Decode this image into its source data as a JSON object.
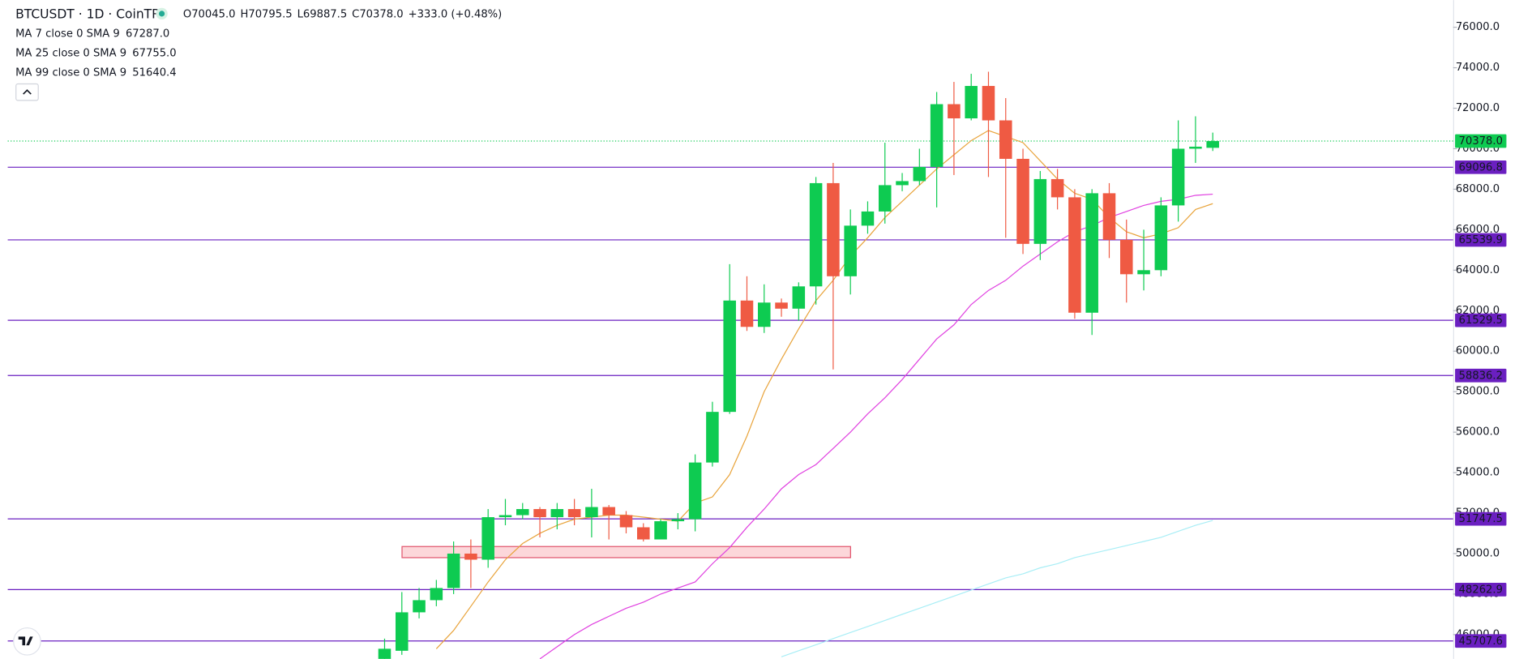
{
  "chart_data": {
    "type": "candlestick",
    "symbol": "BTCUSDT · 1D · CoinTR",
    "ohlc_labels": [
      "O70045.0",
      "H70795.5",
      "L69887.5",
      "C70378.0"
    ],
    "change_label": "+333.0 (+0.48%)",
    "up_color": "#0ecb51",
    "down_color": "#ef5a43",
    "open": [
      44800,
      45200,
      47100,
      47700,
      48300,
      50000,
      49700,
      51800,
      51900,
      52200,
      51800,
      52200,
      51800,
      52300,
      51900,
      51300,
      50700,
      51600,
      51700,
      54500,
      57000,
      62500,
      61200,
      62400,
      62100,
      63200,
      68300,
      63700,
      66200,
      66900,
      68200,
      68400,
      69100,
      72200,
      71500,
      73100,
      71400,
      69500,
      65300,
      68500,
      67600,
      61900,
      67800,
      65500,
      63800,
      64000,
      67200,
      70000,
      70045
    ],
    "high": [
      45800,
      48100,
      48300,
      48700,
      50600,
      50700,
      52200,
      52700,
      52500,
      52300,
      52500,
      52700,
      53200,
      52400,
      52100,
      51500,
      51700,
      52000,
      54900,
      57500,
      64300,
      63700,
      63300,
      62600,
      63400,
      68600,
      69300,
      67000,
      67400,
      70300,
      68800,
      70000,
      72800,
      73300,
      73700,
      73800,
      72500,
      70000,
      68900,
      69000,
      68000,
      68000,
      68300,
      66500,
      66000,
      67600,
      71400,
      71600,
      70795.5
    ],
    "low": [
      44800,
      45000,
      46800,
      47400,
      48000,
      48300,
      49300,
      51400,
      51700,
      50800,
      51200,
      51400,
      50800,
      50700,
      51000,
      50600,
      50700,
      51200,
      51100,
      54300,
      56900,
      61000,
      60900,
      61700,
      61500,
      62300,
      59100,
      62800,
      65800,
      66300,
      67900,
      68200,
      67100,
      68700,
      71400,
      68600,
      65600,
      64800,
      64500,
      67000,
      61600,
      60800,
      64600,
      62400,
      63000,
      63700,
      66400,
      69300,
      69887.5
    ],
    "close": [
      45300,
      47100,
      47700,
      48300,
      50000,
      49700,
      51800,
      51900,
      52200,
      51800,
      52200,
      51800,
      52300,
      51900,
      51300,
      50700,
      51600,
      51700,
      54500,
      57000,
      62500,
      61200,
      62400,
      62100,
      63200,
      68300,
      63700,
      66200,
      66900,
      68200,
      68400,
      69100,
      72200,
      71500,
      73100,
      71400,
      69500,
      65300,
      68500,
      67600,
      61900,
      67800,
      65500,
      63800,
      64000,
      67200,
      70000,
      70100,
      70378
    ],
    "series": [
      {
        "name": "MA 7 close 0 SMA 9",
        "color": "#e8a33a",
        "last_label": "67287.0",
        "values": [
          null,
          null,
          null,
          45300,
          46200,
          47400,
          48600,
          49700,
          50500,
          51000,
          51400,
          51700,
          51800,
          51900,
          51900,
          51800,
          51700,
          51600,
          52500,
          52800,
          53900,
          55800,
          58000,
          59600,
          61100,
          62500,
          63500,
          64700,
          65600,
          66600,
          67400,
          68200,
          69000,
          69700,
          70400,
          70900,
          70600,
          70300,
          69400,
          68500,
          67800,
          67500,
          66600,
          65900,
          65600,
          65800,
          66100,
          67000,
          67287
        ]
      },
      {
        "name": "MA 25 close 0 SMA 9",
        "color": "#e040e0",
        "last_label": "67755.0",
        "values": [
          null,
          null,
          null,
          null,
          null,
          null,
          null,
          null,
          null,
          44800,
          45400,
          46000,
          46500,
          46900,
          47300,
          47600,
          48000,
          48300,
          48600,
          49500,
          50300,
          51300,
          52200,
          53200,
          53900,
          54400,
          55200,
          56000,
          56900,
          57700,
          58600,
          59600,
          60600,
          61300,
          62300,
          63000,
          63500,
          64200,
          64800,
          65400,
          65900,
          66200,
          66600,
          66900,
          67200,
          67400,
          67500,
          67700,
          67755
        ]
      },
      {
        "name": "MA 99 close 0 SMA 9",
        "color": "#a8eef6",
        "last_label": "51640.4",
        "values": [
          null,
          null,
          null,
          null,
          null,
          null,
          null,
          null,
          null,
          null,
          null,
          null,
          null,
          null,
          null,
          null,
          null,
          null,
          null,
          null,
          null,
          null,
          null,
          44900,
          45200,
          45500,
          45800,
          46100,
          46400,
          46700,
          47000,
          47300,
          47600,
          47900,
          48200,
          48500,
          48800,
          49000,
          49300,
          49500,
          49800,
          50000,
          50200,
          50400,
          50600,
          50800,
          51100,
          51400,
          51640
        ]
      }
    ],
    "levels": [
      69096.8,
      65539.9,
      61529.5,
      58836.2,
      51747.5,
      48262.9,
      45707.6
    ],
    "level_color": "#6a1fc0",
    "last_price": {
      "value": 70378,
      "label": "70378.0"
    },
    "zone": {
      "high": 50350,
      "low": 49800
    },
    "ylim": [
      44800,
      77340
    ],
    "yticks": [
      {
        "value": 46000,
        "label": "46000.0"
      },
      {
        "value": 48000,
        "label": "48000.0"
      },
      {
        "value": 50000,
        "label": "50000.0"
      },
      {
        "value": 52000,
        "label": "52000.0"
      },
      {
        "value": 54000,
        "label": "54000.0"
      },
      {
        "value": 56000,
        "label": "56000.0"
      },
      {
        "value": 58000,
        "label": "58000.0"
      },
      {
        "value": 60000,
        "label": "60000.0"
      },
      {
        "value": 62000,
        "label": "62000.0"
      },
      {
        "value": 64000,
        "label": "64000.0"
      },
      {
        "value": 66000,
        "label": "66000.0"
      },
      {
        "value": 68000,
        "label": "68000.0"
      },
      {
        "value": 70000,
        "label": "70000.0"
      },
      {
        "value": 72000,
        "label": "72000.0"
      },
      {
        "value": 74000,
        "label": "74000.0"
      },
      {
        "value": 76000,
        "label": "76000.0"
      }
    ]
  }
}
